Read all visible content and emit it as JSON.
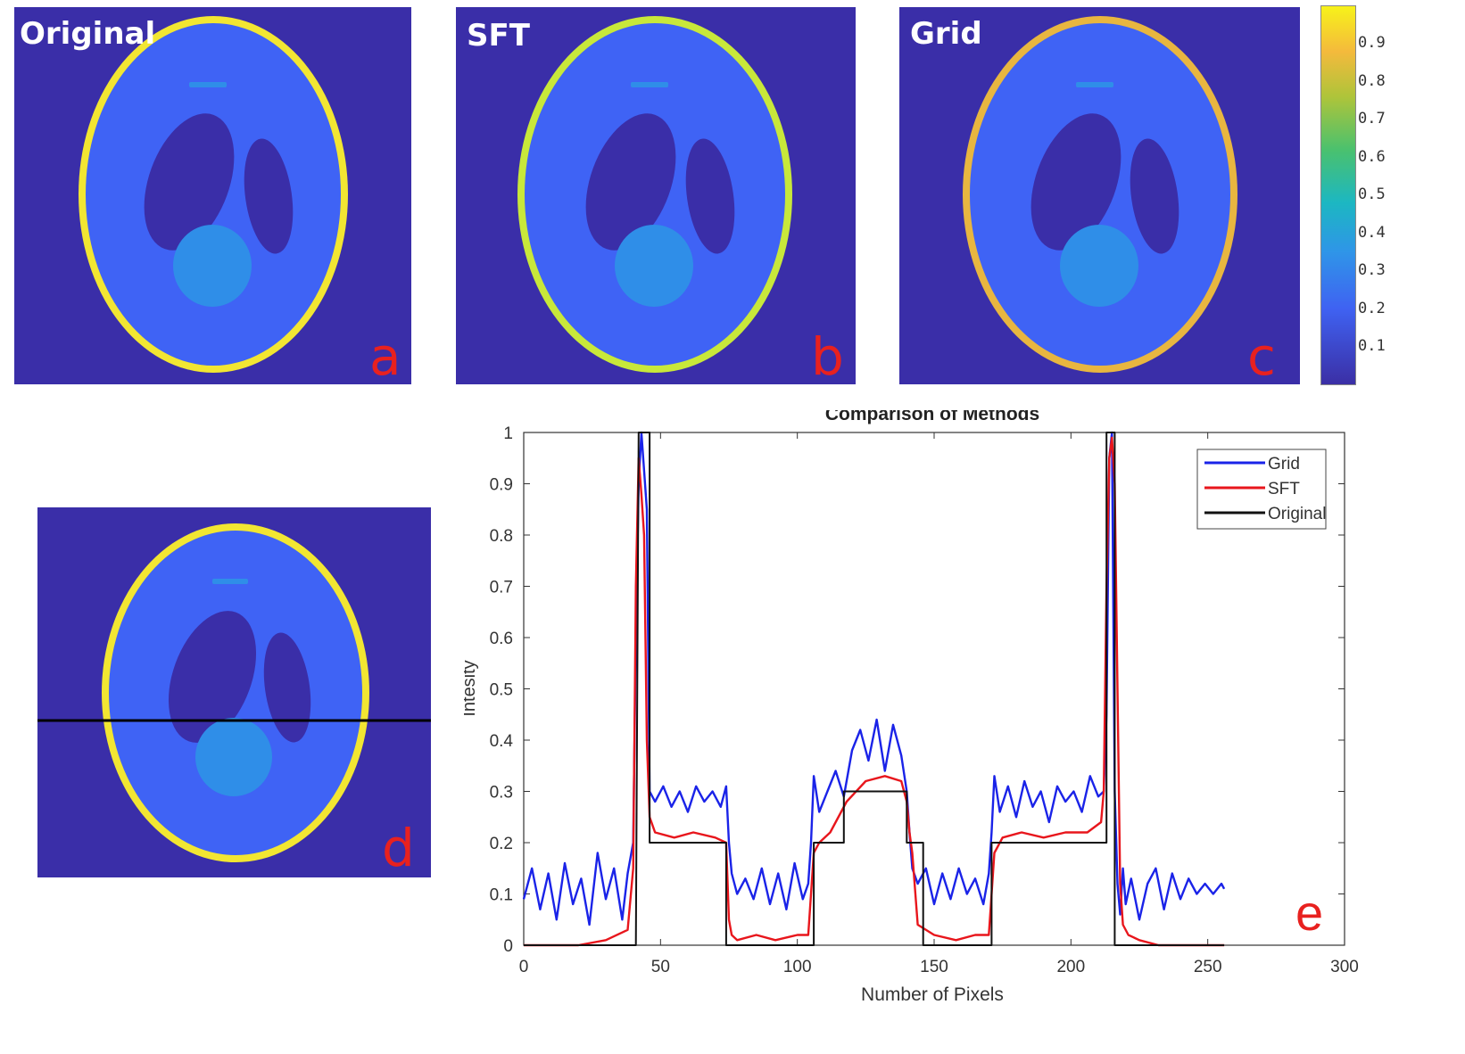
{
  "panels": {
    "a": {
      "title": "Original",
      "letter": "a",
      "rim_color": "#f2e632"
    },
    "b": {
      "title": "SFT",
      "letter": "b",
      "rim_color": "#c8e83a"
    },
    "c": {
      "title": "Grid",
      "letter": "c",
      "rim_color": "#e8b640"
    },
    "d": {
      "letter": "d",
      "rim_color": "#f2e632"
    }
  },
  "colors": {
    "background": "#3a2ea8",
    "ellipse_fill": "#3f63f5",
    "dark_fill": "#3a2ea8",
    "circle_fill": "#2f8ee8",
    "profile_line": "#000000"
  },
  "colorbar": {
    "ticks": [
      "0.9",
      "0.8",
      "0.7",
      "0.6",
      "0.5",
      "0.4",
      "0.3",
      "0.2",
      "0.1"
    ]
  },
  "chart_data": {
    "type": "line",
    "title": "Comparison of Methods",
    "xlabel": "Number of Pixels",
    "ylabel": "Intesity",
    "xlim": [
      0,
      300
    ],
    "ylim": [
      0,
      1
    ],
    "xticks": [
      0,
      50,
      100,
      150,
      200,
      250,
      300
    ],
    "yticks": [
      0,
      0.1,
      0.2,
      0.3,
      0.4,
      0.5,
      0.6,
      0.7,
      0.8,
      0.9,
      1
    ],
    "ytick_labels": [
      "0",
      "0.1",
      "0.2",
      "0.3",
      "0.4",
      "0.5",
      "0.6",
      "0.7",
      "0.8",
      "0.9",
      "1"
    ],
    "legend": {
      "position": "top-right",
      "entries": [
        "Grid",
        "SFT",
        "Original"
      ]
    },
    "panel_letter": "e",
    "series": [
      {
        "name": "Grid",
        "color": "#1a23e8",
        "x": [
          0,
          3,
          6,
          9,
          12,
          15,
          18,
          21,
          24,
          27,
          30,
          33,
          36,
          38,
          40,
          41,
          42,
          43,
          45,
          46,
          48,
          51,
          54,
          57,
          60,
          63,
          66,
          69,
          72,
          74,
          75,
          76,
          78,
          81,
          84,
          87,
          90,
          93,
          96,
          99,
          102,
          104,
          105,
          106,
          108,
          111,
          114,
          117,
          120,
          123,
          126,
          129,
          132,
          135,
          138,
          140,
          141,
          142,
          144,
          147,
          150,
          153,
          156,
          159,
          162,
          165,
          168,
          170,
          171,
          172,
          174,
          177,
          180,
          183,
          186,
          189,
          192,
          195,
          198,
          201,
          204,
          207,
          210,
          212,
          213,
          214,
          215,
          216,
          217,
          218,
          219,
          220,
          222,
          225,
          228,
          231,
          234,
          237,
          240,
          243,
          246,
          249,
          252,
          255,
          256
        ],
        "y": [
          0.09,
          0.15,
          0.07,
          0.14,
          0.05,
          0.16,
          0.08,
          0.13,
          0.04,
          0.18,
          0.09,
          0.15,
          0.05,
          0.14,
          0.2,
          0.6,
          0.9,
          1.0,
          0.85,
          0.3,
          0.28,
          0.31,
          0.27,
          0.3,
          0.26,
          0.31,
          0.28,
          0.3,
          0.27,
          0.31,
          0.2,
          0.14,
          0.1,
          0.13,
          0.09,
          0.15,
          0.08,
          0.14,
          0.07,
          0.16,
          0.09,
          0.12,
          0.2,
          0.33,
          0.26,
          0.3,
          0.34,
          0.29,
          0.38,
          0.42,
          0.36,
          0.44,
          0.34,
          0.43,
          0.37,
          0.3,
          0.22,
          0.15,
          0.12,
          0.15,
          0.08,
          0.14,
          0.09,
          0.15,
          0.1,
          0.13,
          0.08,
          0.14,
          0.22,
          0.33,
          0.26,
          0.31,
          0.25,
          0.32,
          0.27,
          0.3,
          0.24,
          0.31,
          0.28,
          0.3,
          0.26,
          0.33,
          0.29,
          0.3,
          0.45,
          0.95,
          1.0,
          0.3,
          0.12,
          0.06,
          0.15,
          0.08,
          0.13,
          0.05,
          0.12,
          0.15,
          0.07,
          0.14,
          0.09,
          0.13,
          0.1,
          0.12,
          0.1,
          0.12,
          0.11
        ]
      },
      {
        "name": "SFT",
        "color": "#e8161c",
        "x": [
          0,
          10,
          20,
          30,
          38,
          40,
          41,
          42,
          43,
          44,
          45,
          46,
          48,
          55,
          62,
          70,
          74,
          75,
          76,
          78,
          85,
          92,
          100,
          104,
          105,
          106,
          108,
          112,
          118,
          125,
          132,
          138,
          140,
          141,
          142,
          144,
          150,
          158,
          165,
          170,
          171,
          172,
          175,
          182,
          190,
          198,
          206,
          211,
          212,
          213,
          214,
          215,
          216,
          217,
          218,
          219,
          221,
          225,
          232,
          240,
          250,
          256
        ],
        "y": [
          0,
          0,
          0,
          0.01,
          0.03,
          0.15,
          0.7,
          0.95,
          0.88,
          0.8,
          0.4,
          0.25,
          0.22,
          0.21,
          0.22,
          0.21,
          0.2,
          0.05,
          0.02,
          0.01,
          0.02,
          0.01,
          0.02,
          0.02,
          0.1,
          0.18,
          0.2,
          0.22,
          0.28,
          0.32,
          0.33,
          0.32,
          0.28,
          0.22,
          0.18,
          0.04,
          0.02,
          0.01,
          0.02,
          0.02,
          0.1,
          0.18,
          0.21,
          0.22,
          0.21,
          0.22,
          0.22,
          0.24,
          0.3,
          0.7,
          0.95,
          0.99,
          0.9,
          0.5,
          0.12,
          0.04,
          0.02,
          0.01,
          0,
          0,
          0,
          0
        ]
      },
      {
        "name": "Original",
        "color": "#111111",
        "x": [
          0,
          41,
          42,
          46,
          46,
          74,
          74,
          106,
          106,
          117,
          117,
          140,
          140,
          146,
          146,
          171,
          171,
          213,
          213,
          216,
          216,
          256
        ],
        "y": [
          0,
          0,
          1,
          1,
          0.2,
          0.2,
          0,
          0,
          0.2,
          0.2,
          0.3,
          0.3,
          0.2,
          0.2,
          0,
          0,
          0.2,
          0.2,
          1,
          1,
          0,
          0
        ]
      }
    ]
  }
}
